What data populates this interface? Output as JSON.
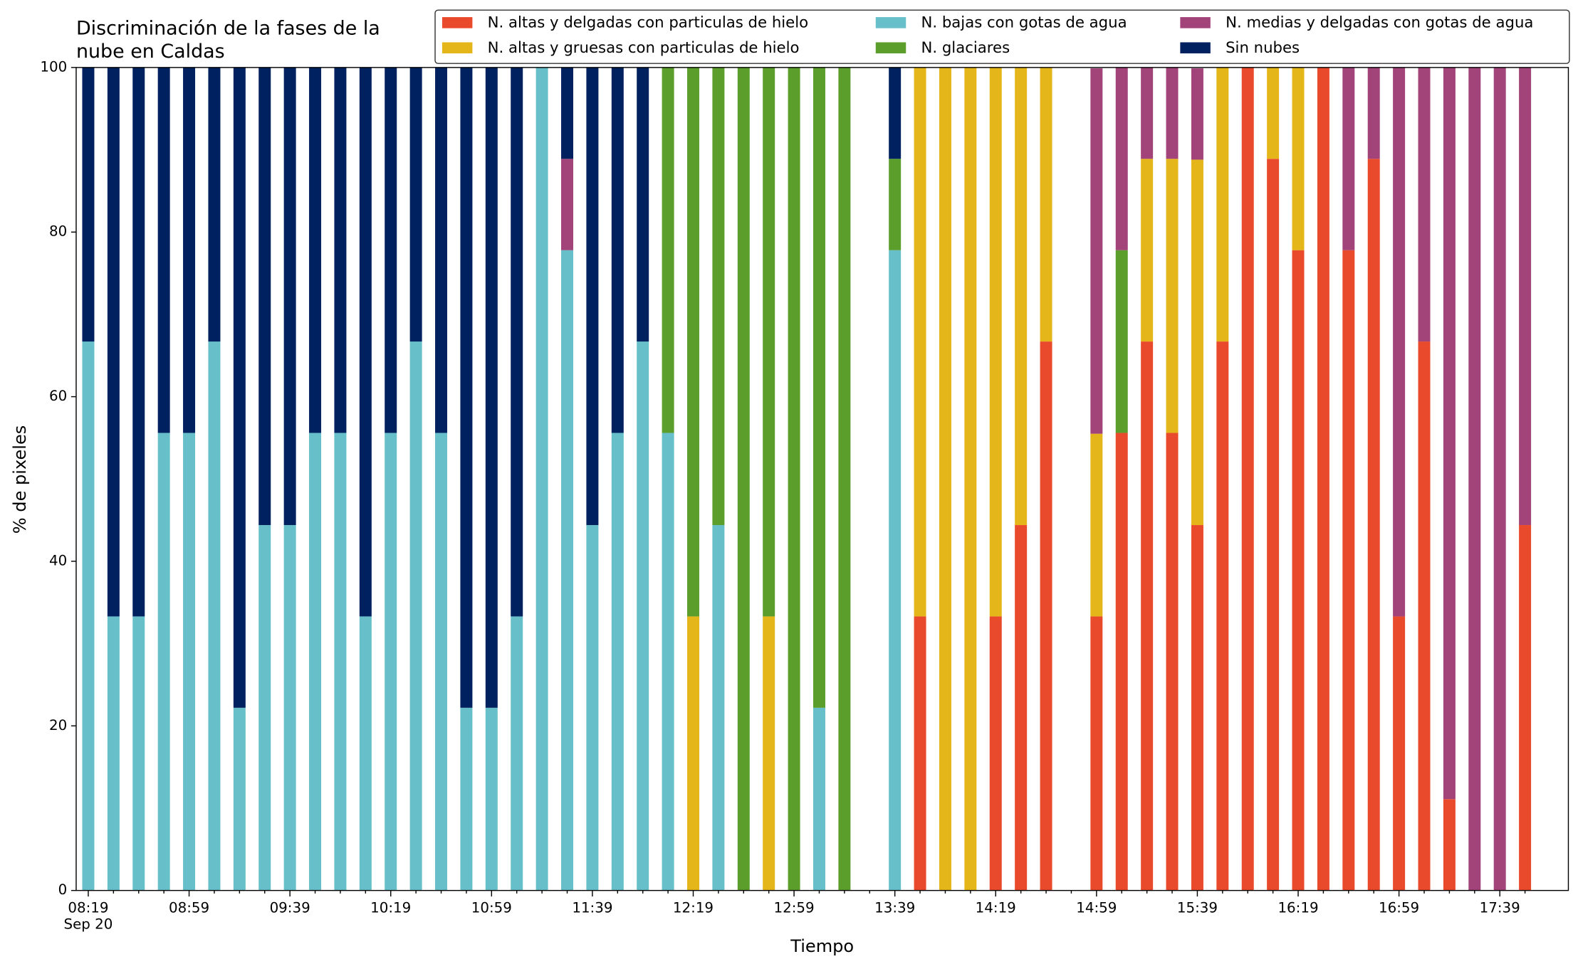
{
  "chart_data": {
    "type": "stacked-bar",
    "title": [
      "Discriminación de la fases de la",
      "nube en Caldas"
    ],
    "xlabel": "Tiempo",
    "ylabel": "% de pixeles",
    "x_sublabel": "Sep 20",
    "categories": [
      "08:19",
      null,
      null,
      null,
      "08:59",
      null,
      null,
      null,
      "09:39",
      null,
      null,
      null,
      "10:19",
      null,
      null,
      null,
      "10:59",
      null,
      null,
      null,
      "11:39",
      null,
      null,
      null,
      "12:19",
      null,
      null,
      null,
      "12:59",
      null,
      null,
      null,
      "13:39",
      null,
      null,
      null,
      "14:19",
      null,
      null,
      null,
      "14:59",
      null,
      null,
      null,
      "15:39",
      null,
      null,
      null,
      "16:19",
      null,
      null,
      null,
      "16:59",
      null,
      null,
      null,
      "17:39",
      null
    ],
    "ylim": [
      0,
      100
    ],
    "yticks": [
      0,
      20,
      40,
      60,
      80,
      100
    ],
    "series": [
      {
        "name": "N. altas y delgadas con particulas de hielo",
        "color": "#ea4a2c",
        "values": [
          0,
          0,
          0,
          0,
          0,
          0,
          0,
          0,
          0,
          0,
          0,
          0,
          0,
          0,
          0,
          0,
          0,
          0,
          0,
          0,
          0,
          0,
          0,
          0,
          0,
          0,
          0,
          0,
          0,
          0,
          0,
          0,
          0,
          33.3,
          0,
          0,
          33.3,
          44.4,
          66.7,
          0,
          33.3,
          55.6,
          66.7,
          55.6,
          44.4,
          66.7,
          100,
          88.9,
          77.8,
          100,
          77.8,
          88.9,
          33.3,
          66.7,
          11.1,
          0,
          0,
          44.4
        ]
      },
      {
        "name": "N. altas y gruesas con particulas de hielo",
        "color": "#e4b619",
        "values": [
          0,
          0,
          0,
          0,
          0,
          0,
          0,
          0,
          0,
          0,
          0,
          0,
          0,
          0,
          0,
          0,
          0,
          0,
          0,
          0,
          0,
          0,
          0,
          0,
          33.3,
          0,
          0,
          33.3,
          0,
          0,
          0,
          0,
          0,
          66.7,
          100,
          100,
          66.7,
          55.6,
          33.3,
          0,
          22.2,
          0,
          22.2,
          33.3,
          44.4,
          33.3,
          0,
          11.1,
          22.2,
          0,
          0,
          0,
          0,
          0,
          0,
          0,
          0,
          0
        ]
      },
      {
        "name": "N. bajas con gotas de agua",
        "color": "#66bfc9",
        "values": [
          66.7,
          33.3,
          33.3,
          55.6,
          55.6,
          66.7,
          22.2,
          44.4,
          44.4,
          55.6,
          55.6,
          33.3,
          55.6,
          66.7,
          55.6,
          22.2,
          22.2,
          33.3,
          100,
          77.8,
          44.4,
          55.6,
          66.7,
          55.6,
          0,
          44.4,
          0,
          0,
          0,
          22.2,
          0,
          0,
          77.8,
          0,
          0,
          0,
          0,
          0,
          0,
          0,
          0,
          0,
          0,
          0,
          0,
          0,
          0,
          0,
          0,
          0,
          0,
          0,
          0,
          0,
          0,
          0,
          0,
          0
        ]
      },
      {
        "name": "N. glaciares",
        "color": "#5c9e2c",
        "values": [
          0,
          0,
          0,
          0,
          0,
          0,
          0,
          0,
          0,
          0,
          0,
          0,
          0,
          0,
          0,
          0,
          0,
          0,
          0,
          0,
          0,
          0,
          0,
          44.4,
          66.7,
          55.6,
          100,
          66.7,
          100,
          77.8,
          100,
          0,
          11.1,
          0,
          0,
          0,
          0,
          0,
          0,
          0,
          0,
          22.2,
          0,
          0,
          0,
          0,
          0,
          0,
          0,
          0,
          0,
          0,
          0,
          0,
          0,
          0,
          0,
          0
        ]
      },
      {
        "name": "N. medias y delgadas con gotas de agua",
        "color": "#a2437a",
        "values": [
          0,
          0,
          0,
          0,
          0,
          0,
          0,
          0,
          0,
          0,
          0,
          0,
          0,
          0,
          0,
          0,
          0,
          0,
          0,
          11.1,
          0,
          0,
          0,
          0,
          0,
          0,
          0,
          0,
          0,
          0,
          0,
          0,
          0,
          0,
          0,
          0,
          0,
          0,
          0,
          0,
          44.4,
          22.2,
          11.1,
          11.1,
          11.1,
          0,
          0,
          0,
          0,
          0,
          22.2,
          11.1,
          66.7,
          33.3,
          88.9,
          100,
          100,
          55.6
        ]
      },
      {
        "name": "Sin nubes",
        "color": "#00215f",
        "values": [
          33.3,
          66.7,
          66.7,
          44.4,
          44.4,
          33.3,
          77.8,
          55.6,
          55.6,
          44.4,
          44.4,
          66.7,
          44.4,
          33.3,
          44.4,
          77.8,
          77.8,
          66.7,
          0,
          11.1,
          55.6,
          44.4,
          33.3,
          0,
          0,
          0,
          0,
          0,
          0,
          0,
          0,
          0,
          11.1,
          0,
          0,
          0,
          0,
          0,
          0,
          0,
          0,
          0,
          0,
          0,
          0,
          0,
          0,
          0,
          0,
          0,
          0,
          0,
          0,
          0,
          0,
          0,
          0,
          0
        ]
      }
    ]
  }
}
